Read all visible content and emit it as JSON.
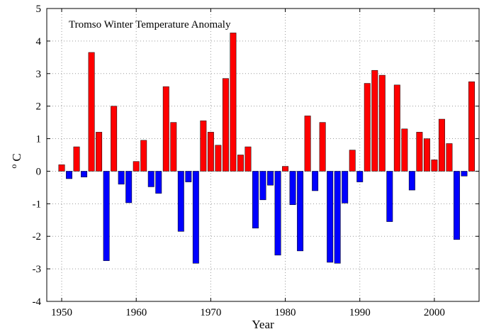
{
  "chart_data": {
    "type": "bar",
    "title": "Tromso Winter Temperature Anomaly",
    "xlabel": "Year",
    "ylabel": "o C",
    "ylabel_super": "o",
    "ylabel_unit": "C",
    "xlim": [
      1948,
      2006
    ],
    "ylim": [
      -4,
      5
    ],
    "xticks": [
      1950,
      1960,
      1970,
      1980,
      1990,
      2000
    ],
    "yticks": [
      -4,
      -3,
      -2,
      -1,
      0,
      1,
      2,
      3,
      4,
      5
    ],
    "grid": true,
    "positive_color": "#ff0000",
    "negative_color": "#0000ff",
    "x": [
      1950,
      1951,
      1952,
      1953,
      1954,
      1955,
      1956,
      1957,
      1958,
      1959,
      1960,
      1961,
      1962,
      1963,
      1964,
      1965,
      1966,
      1967,
      1968,
      1969,
      1970,
      1971,
      1972,
      1973,
      1974,
      1975,
      1976,
      1977,
      1978,
      1979,
      1980,
      1981,
      1982,
      1983,
      1984,
      1985,
      1986,
      1987,
      1988,
      1989,
      1990,
      1991,
      1992,
      1993,
      1994,
      1995,
      1996,
      1997,
      1998,
      1999,
      2000,
      2001,
      2002,
      2003,
      2004,
      2005
    ],
    "values": [
      0.2,
      -0.23,
      0.75,
      -0.18,
      3.65,
      1.2,
      -2.75,
      2.0,
      -0.4,
      -0.97,
      0.3,
      0.95,
      -0.48,
      -0.68,
      2.6,
      1.5,
      -1.85,
      -0.33,
      -2.83,
      1.55,
      1.2,
      0.8,
      2.85,
      4.25,
      0.5,
      0.75,
      -1.75,
      -0.88,
      -0.43,
      -2.58,
      0.15,
      -1.03,
      -2.45,
      1.7,
      -0.6,
      1.5,
      -2.8,
      -2.83,
      -0.98,
      0.65,
      -0.33,
      2.7,
      3.1,
      2.95,
      -1.55,
      2.65,
      1.3,
      -0.58,
      1.2,
      1.0,
      0.35,
      1.6,
      0.85,
      -2.1,
      -0.15,
      2.75
    ]
  }
}
